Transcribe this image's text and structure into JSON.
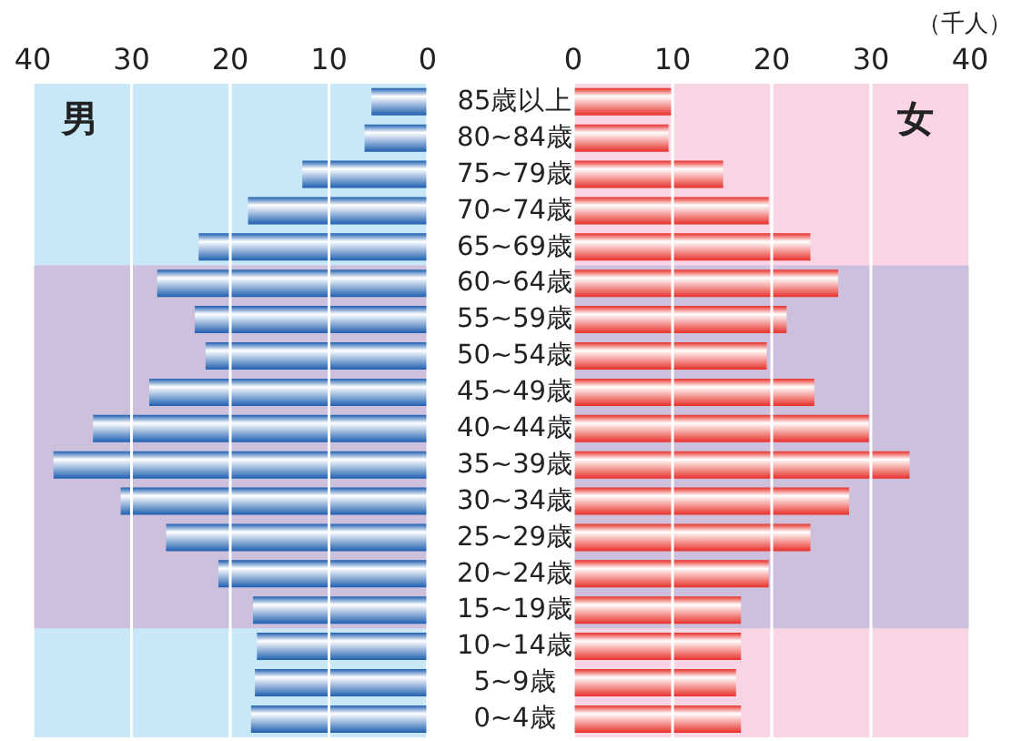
{
  "chart_data": [
    {
      "type": "bar",
      "orientation": "horizontal",
      "categories": [
        "85歳以上",
        "80~84歳",
        "75~79歳",
        "70~74歳",
        "65~69歳",
        "60~64歳",
        "55~59歳",
        "50~54歳",
        "45~49歳",
        "40~44歳",
        "35~39歳",
        "30~34歳",
        "25~29歳",
        "20~24歳",
        "15~19歳",
        "10~14歳",
        "5~9歳",
        "0~4歳"
      ],
      "series": [
        {
          "name": "男",
          "color": "#1f5fb0",
          "values": [
            5.7,
            6.4,
            12.7,
            18.2,
            23.2,
            27.4,
            23.6,
            22.5,
            28.2,
            33.9,
            37.9,
            31.1,
            26.5,
            21.2,
            17.7,
            17.3,
            17.5,
            17.9
          ]
        }
      ],
      "xlim": [
        40,
        0
      ],
      "xticks": [
        40,
        30,
        20,
        10,
        0
      ],
      "grid": "x",
      "bands": [
        {
          "axis": "y",
          "from": "60~64歳",
          "to": "15~19歳",
          "color": "#cdc0dd"
        }
      ]
    },
    {
      "type": "bar",
      "orientation": "horizontal",
      "categories": [
        "85歳以上",
        "80~84歳",
        "75~79歳",
        "70~74歳",
        "65~69歳",
        "60~64歳",
        "55~59歳",
        "50~54歳",
        "45~49歳",
        "40~44歳",
        "35~39歳",
        "30~34歳",
        "25~29歳",
        "20~24歳",
        "15~19歳",
        "10~14歳",
        "5~9歳",
        "0~4歳"
      ],
      "series": [
        {
          "name": "女",
          "color": "#e8302a",
          "values": [
            9.9,
            9.6,
            15.1,
            19.7,
            23.9,
            26.7,
            21.5,
            19.5,
            24.3,
            29.8,
            33.9,
            27.8,
            23.9,
            19.7,
            16.9,
            16.9,
            16.4,
            16.9
          ]
        }
      ],
      "xlim": [
        0,
        40
      ],
      "xticks": [
        0,
        10,
        20,
        30,
        40
      ],
      "grid": "x",
      "tick_labels": "x",
      "bands": [
        {
          "axis": "y",
          "from": "60~64歳",
          "to": "15~19歳",
          "color": "#cdc0dd"
        }
      ],
      "annotations": [
        "（千人）"
      ]
    }
  ]
}
